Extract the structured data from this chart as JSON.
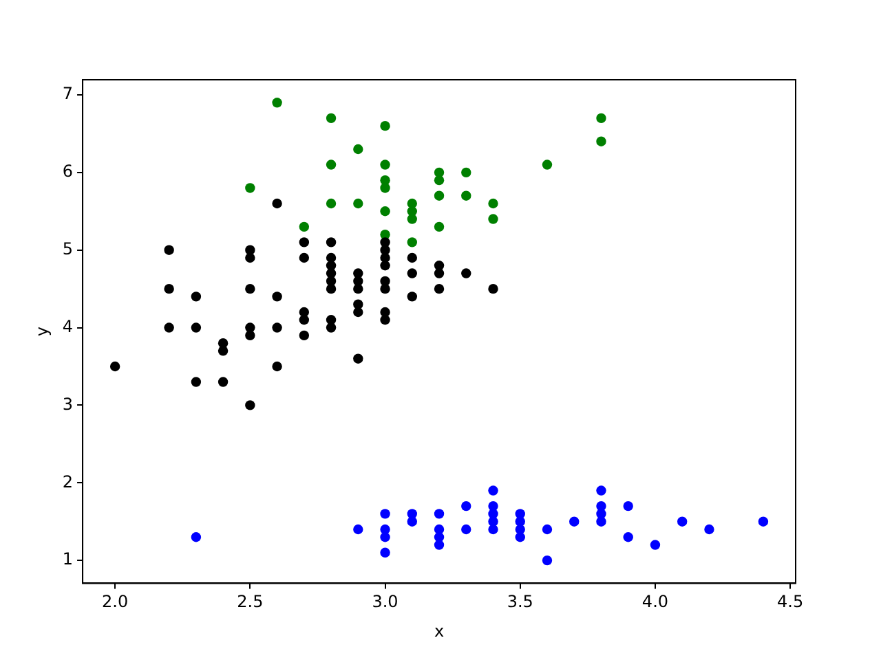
{
  "chart_data": {
    "type": "scatter",
    "xlabel": "x",
    "ylabel": "y",
    "xlim": [
      1.88,
      4.52
    ],
    "ylim": [
      0.705,
      7.195
    ],
    "xticks": [
      {
        "value": 2.0,
        "label": "2.0"
      },
      {
        "value": 2.5,
        "label": "2.5"
      },
      {
        "value": 3.0,
        "label": "3.0"
      },
      {
        "value": 3.5,
        "label": "3.5"
      },
      {
        "value": 4.0,
        "label": "4.0"
      },
      {
        "value": 4.5,
        "label": "4.5"
      }
    ],
    "yticks": [
      1,
      2,
      3,
      4,
      5,
      6,
      7
    ],
    "grid": false,
    "legend": false,
    "marker": "circle",
    "series": [
      {
        "color": "#000000",
        "x": [
          2.0,
          2.2,
          2.2,
          2.2,
          2.3,
          2.3,
          2.3,
          2.4,
          2.4,
          2.4,
          2.5,
          2.5,
          2.5,
          2.5,
          2.5,
          2.5,
          2.6,
          2.6,
          2.6,
          2.6,
          2.7,
          2.7,
          2.7,
          2.7,
          2.7,
          2.8,
          2.8,
          2.8,
          2.8,
          2.8,
          2.8,
          2.8,
          2.8,
          2.9,
          2.9,
          2.9,
          2.9,
          2.9,
          2.9,
          3.0,
          3.0,
          3.0,
          3.0,
          3.0,
          3.0,
          3.0,
          3.0,
          3.1,
          3.1,
          3.1,
          3.2,
          3.2,
          3.2,
          3.3,
          3.4
        ],
        "values": [
          3.5,
          5.0,
          4.5,
          4.0,
          4.4,
          4.0,
          3.3,
          3.8,
          3.7,
          3.3,
          5.0,
          4.9,
          4.5,
          4.0,
          3.9,
          3.0,
          5.6,
          4.4,
          4.0,
          3.5,
          5.1,
          4.9,
          4.2,
          4.1,
          3.9,
          5.1,
          4.9,
          4.8,
          4.7,
          4.6,
          4.5,
          4.1,
          4.0,
          4.7,
          4.6,
          4.5,
          4.3,
          4.2,
          3.6,
          5.1,
          5.0,
          4.9,
          4.8,
          4.6,
          4.5,
          4.2,
          4.1,
          4.9,
          4.7,
          4.4,
          4.8,
          4.7,
          4.5,
          4.7,
          4.5
        ]
      },
      {
        "color": "#008000",
        "x": [
          2.5,
          2.6,
          2.7,
          2.8,
          2.8,
          2.8,
          2.9,
          2.9,
          3.0,
          3.0,
          3.0,
          3.0,
          3.0,
          3.0,
          3.1,
          3.1,
          3.1,
          3.1,
          3.2,
          3.2,
          3.2,
          3.2,
          3.3,
          3.3,
          3.4,
          3.4,
          3.6,
          3.8,
          3.8
        ],
        "values": [
          5.8,
          6.9,
          5.3,
          6.7,
          6.1,
          5.6,
          6.3,
          5.6,
          6.6,
          6.1,
          5.9,
          5.8,
          5.5,
          5.2,
          5.6,
          5.5,
          5.4,
          5.1,
          6.0,
          5.9,
          5.7,
          5.3,
          6.0,
          5.7,
          5.6,
          5.4,
          6.1,
          6.7,
          6.4
        ]
      },
      {
        "color": "#0000ff",
        "x": [
          2.3,
          2.9,
          3.0,
          3.0,
          3.0,
          3.0,
          3.1,
          3.1,
          3.2,
          3.2,
          3.2,
          3.2,
          3.3,
          3.3,
          3.4,
          3.4,
          3.4,
          3.4,
          3.4,
          3.5,
          3.5,
          3.5,
          3.5,
          3.6,
          3.6,
          3.7,
          3.8,
          3.8,
          3.8,
          3.8,
          3.9,
          3.9,
          4.0,
          4.1,
          4.2,
          4.4
        ],
        "values": [
          1.3,
          1.4,
          1.6,
          1.4,
          1.3,
          1.1,
          1.6,
          1.5,
          1.6,
          1.4,
          1.3,
          1.2,
          1.7,
          1.4,
          1.9,
          1.7,
          1.6,
          1.5,
          1.4,
          1.6,
          1.5,
          1.4,
          1.3,
          1.4,
          1.0,
          1.5,
          1.9,
          1.7,
          1.6,
          1.5,
          1.7,
          1.3,
          1.2,
          1.5,
          1.4,
          1.5
        ]
      }
    ]
  }
}
